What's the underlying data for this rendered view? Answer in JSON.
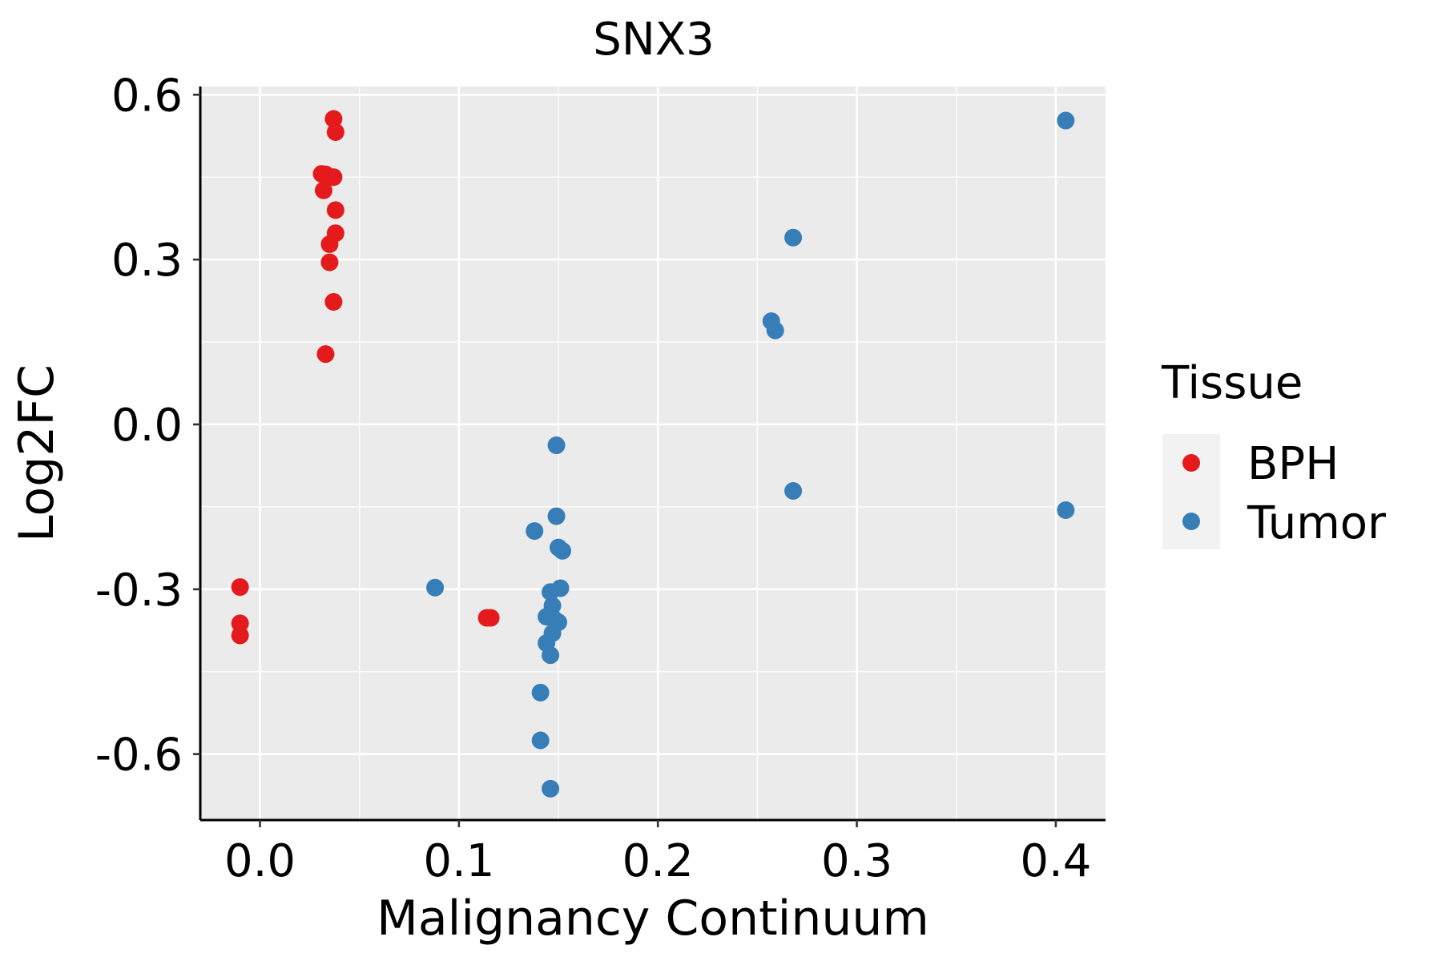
{
  "chart_data": {
    "type": "scatter",
    "title": "SNX3",
    "xlabel": "Malignancy Continuum",
    "ylabel": "Log2FC",
    "xlim": [
      -0.03,
      0.425
    ],
    "ylim": [
      -0.72,
      0.615
    ],
    "x_ticks": [
      {
        "value": 0.0,
        "label": "0.0"
      },
      {
        "value": 0.1,
        "label": "0.1"
      },
      {
        "value": 0.2,
        "label": "0.2"
      },
      {
        "value": 0.3,
        "label": "0.3"
      },
      {
        "value": 0.4,
        "label": "0.4"
      }
    ],
    "y_ticks": [
      {
        "value": 0.6,
        "label": "0.6"
      },
      {
        "value": 0.3,
        "label": "0.3"
      },
      {
        "value": 0.0,
        "label": "0.0"
      },
      {
        "value": -0.3,
        "label": "-0.3"
      },
      {
        "value": -0.6,
        "label": "-0.6"
      }
    ],
    "x_minor": [
      0.05,
      0.15,
      0.25,
      0.35
    ],
    "y_minor": [
      0.45,
      0.15,
      -0.15,
      -0.45
    ],
    "grid": true,
    "legend": {
      "title": "Tissue",
      "position": "right",
      "entries": [
        {
          "name": "BPH",
          "color": "#E41A1C"
        },
        {
          "name": "Tumor",
          "color": "#377EB8"
        }
      ]
    },
    "series": [
      {
        "name": "BPH",
        "color": "#E41A1C",
        "points": [
          {
            "x": 0.037,
            "y": 0.556
          },
          {
            "x": 0.038,
            "y": 0.532
          },
          {
            "x": 0.031,
            "y": 0.456
          },
          {
            "x": 0.033,
            "y": 0.455
          },
          {
            "x": 0.037,
            "y": 0.45
          },
          {
            "x": 0.032,
            "y": 0.426
          },
          {
            "x": 0.038,
            "y": 0.39
          },
          {
            "x": 0.038,
            "y": 0.348
          },
          {
            "x": 0.035,
            "y": 0.328
          },
          {
            "x": 0.035,
            "y": 0.295
          },
          {
            "x": 0.037,
            "y": 0.223
          },
          {
            "x": 0.033,
            "y": 0.128
          },
          {
            "x": -0.01,
            "y": -0.296
          },
          {
            "x": -0.01,
            "y": -0.362
          },
          {
            "x": -0.01,
            "y": -0.384
          },
          {
            "x": 0.114,
            "y": -0.352
          },
          {
            "x": 0.116,
            "y": -0.352
          }
        ]
      },
      {
        "name": "Tumor",
        "color": "#377EB8",
        "points": [
          {
            "x": 0.405,
            "y": 0.553
          },
          {
            "x": 0.268,
            "y": 0.34
          },
          {
            "x": 0.257,
            "y": 0.188
          },
          {
            "x": 0.259,
            "y": 0.171
          },
          {
            "x": 0.149,
            "y": -0.038
          },
          {
            "x": 0.268,
            "y": -0.121
          },
          {
            "x": 0.405,
            "y": -0.156
          },
          {
            "x": 0.149,
            "y": -0.167
          },
          {
            "x": 0.138,
            "y": -0.194
          },
          {
            "x": 0.15,
            "y": -0.224
          },
          {
            "x": 0.152,
            "y": -0.23
          },
          {
            "x": 0.088,
            "y": -0.297
          },
          {
            "x": 0.151,
            "y": -0.298
          },
          {
            "x": 0.146,
            "y": -0.305
          },
          {
            "x": 0.147,
            "y": -0.33
          },
          {
            "x": 0.144,
            "y": -0.35
          },
          {
            "x": 0.148,
            "y": -0.355
          },
          {
            "x": 0.15,
            "y": -0.36
          },
          {
            "x": 0.147,
            "y": -0.38
          },
          {
            "x": 0.144,
            "y": -0.398
          },
          {
            "x": 0.146,
            "y": -0.42
          },
          {
            "x": 0.141,
            "y": -0.488
          },
          {
            "x": 0.141,
            "y": -0.575
          },
          {
            "x": 0.146,
            "y": -0.663
          }
        ]
      }
    ]
  }
}
